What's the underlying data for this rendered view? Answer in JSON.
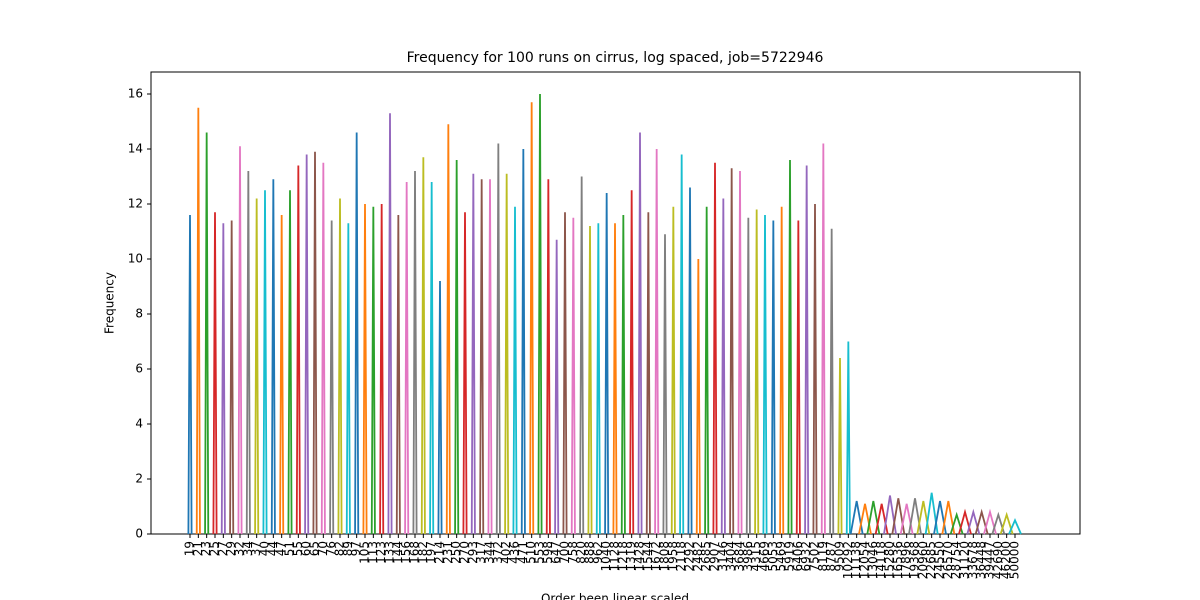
{
  "chart_data": {
    "type": "spikes",
    "title": "Frequency for 100 runs on cirrus, log spaced, job=5722946",
    "x_label": "Order been linear scaled",
    "y_label": "Frequency",
    "categories": [
      "19",
      "21",
      "23",
      "25",
      "27",
      "29",
      "32",
      "34",
      "37",
      "40",
      "44",
      "47",
      "51",
      "55",
      "60",
      "65",
      "70",
      "76",
      "82",
      "89",
      "97",
      "105",
      "113",
      "123",
      "133",
      "144",
      "156",
      "168",
      "182",
      "197",
      "214",
      "231",
      "250",
      "270",
      "293",
      "317",
      "344",
      "372",
      "402",
      "436",
      "471",
      "510",
      "553",
      "598",
      "647",
      "700",
      "758",
      "820",
      "888",
      "962",
      "1040",
      "1128",
      "1218",
      "1319",
      "1428",
      "1544",
      "1672",
      "1808",
      "1958",
      "2118",
      "2292",
      "2482",
      "2685",
      "2907",
      "3146",
      "3404",
      "3684",
      "3986",
      "4315",
      "4669",
      "5053",
      "5469",
      "5919",
      "6406",
      "6932",
      "7502",
      "8119",
      "8787",
      "9509",
      "10292",
      "11138",
      "12054",
      "13046",
      "14118",
      "15280",
      "16536",
      "17896",
      "19368",
      "20960",
      "22685",
      "24550",
      "26570",
      "28754",
      "31120",
      "33678",
      "36448",
      "39447",
      "42690",
      "46200",
      "50000"
    ],
    "values": [
      11.6,
      15.5,
      14.6,
      11.7,
      11.3,
      11.4,
      14.1,
      13.2,
      12.2,
      12.5,
      12.9,
      11.6,
      12.5,
      13.4,
      13.8,
      13.9,
      13.5,
      11.4,
      12.2,
      11.3,
      14.6,
      12.0,
      11.9,
      12.0,
      15.3,
      11.6,
      12.8,
      13.2,
      13.7,
      12.8,
      9.2,
      14.9,
      13.6,
      11.7,
      13.1,
      12.9,
      12.9,
      14.2,
      13.1,
      11.9,
      14.0,
      15.7,
      16.0,
      12.9,
      10.7,
      11.7,
      11.5,
      13.0,
      11.2,
      11.3,
      12.4,
      11.3,
      11.6,
      12.5,
      14.6,
      11.7,
      14.0,
      10.9,
      11.9,
      13.8,
      12.6,
      10.0,
      11.9,
      13.5,
      12.2,
      13.3,
      13.2,
      11.5,
      11.8,
      11.6,
      11.4,
      11.9,
      13.6,
      11.4,
      13.4,
      12.0,
      14.2,
      11.1,
      6.4,
      7.0,
      1.2,
      1.1,
      1.2,
      1.1,
      1.4,
      1.3,
      1.1,
      1.3,
      1.2,
      1.5,
      1.2,
      1.2,
      0.7,
      0.8,
      0.8,
      0.8,
      0.8,
      0.7,
      0.7,
      0.5
    ],
    "colors": [
      "#1f77b4",
      "#ff7f0e",
      "#2ca02c",
      "#d62728",
      "#9467bd",
      "#8c564b",
      "#e377c2",
      "#7f7f7f",
      "#bcbd22",
      "#17becf"
    ],
    "ylim": [
      0,
      16.8
    ],
    "yticks": [
      0,
      2,
      4,
      6,
      8,
      10,
      12,
      14,
      16
    ],
    "grid": false
  }
}
